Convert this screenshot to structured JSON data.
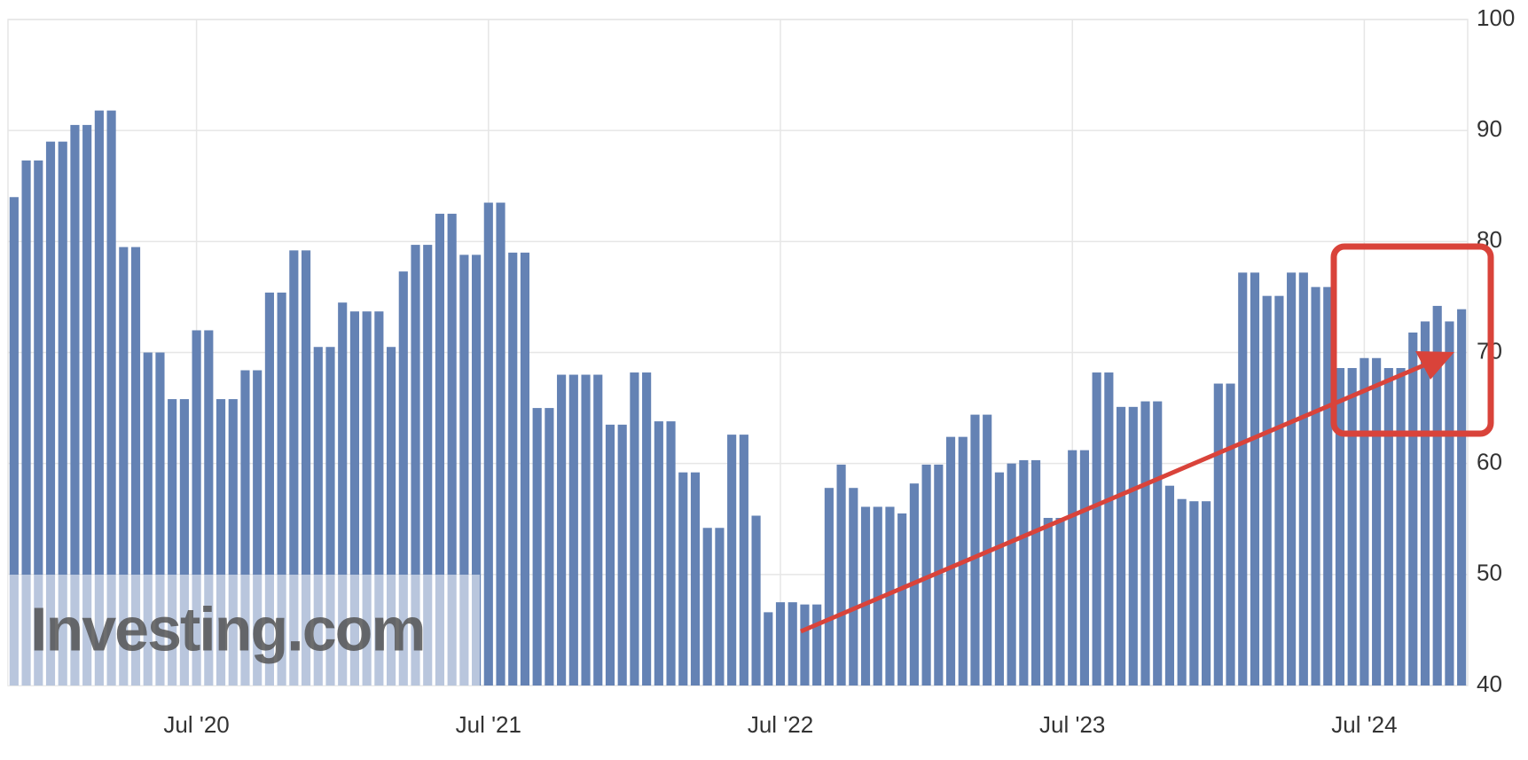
{
  "chart_data": {
    "type": "bar",
    "categories": [
      null,
      null,
      null,
      null,
      null,
      null,
      null,
      null,
      null,
      null,
      null,
      null,
      null,
      null,
      null,
      "Jul '20",
      null,
      null,
      null,
      null,
      null,
      null,
      null,
      null,
      null,
      null,
      null,
      null,
      null,
      null,
      null,
      null,
      null,
      null,
      null,
      null,
      null,
      null,
      null,
      "Jul '21",
      null,
      null,
      null,
      null,
      null,
      null,
      null,
      null,
      null,
      null,
      null,
      null,
      null,
      null,
      null,
      null,
      null,
      null,
      null,
      null,
      null,
      null,
      null,
      "Jul '22",
      null,
      null,
      null,
      null,
      null,
      null,
      null,
      null,
      null,
      null,
      null,
      null,
      null,
      null,
      null,
      null,
      null,
      null,
      null,
      null,
      null,
      null,
      null,
      "Jul '23",
      null,
      null,
      null,
      null,
      null,
      null,
      null,
      null,
      null,
      null,
      null,
      null,
      null,
      null,
      null,
      null,
      null,
      null,
      null,
      null,
      null,
      null,
      null,
      "Jul '24",
      null,
      null,
      null,
      null,
      null,
      null,
      null,
      null
    ],
    "values": [
      84,
      87.3,
      87.3,
      89,
      89,
      90.5,
      90.5,
      91.8,
      91.8,
      79.5,
      79.5,
      70,
      70,
      65.8,
      65.8,
      72,
      72,
      65.8,
      65.8,
      68.4,
      68.4,
      75.4,
      75.4,
      79.2,
      79.2,
      70.5,
      70.5,
      74.5,
      73.7,
      73.7,
      73.7,
      70.5,
      77.3,
      79.7,
      79.7,
      82.5,
      82.5,
      78.8,
      78.8,
      83.5,
      83.5,
      79,
      79,
      65,
      65,
      68,
      68,
      68,
      68,
      63.5,
      63.5,
      68.2,
      68.2,
      63.8,
      63.8,
      59.2,
      59.2,
      54.2,
      54.2,
      62.6,
      62.6,
      55.3,
      46.6,
      47.5,
      47.5,
      47.3,
      47.3,
      57.8,
      59.9,
      57.8,
      56.1,
      56.1,
      56.1,
      55.5,
      58.2,
      59.9,
      59.9,
      62.4,
      62.4,
      64.4,
      64.4,
      59.2,
      60,
      60.3,
      60.3,
      55.1,
      55.1,
      61.2,
      61.2,
      68.2,
      68.2,
      65.1,
      65.1,
      65.6,
      65.6,
      58,
      56.8,
      56.6,
      56.6,
      67.2,
      67.2,
      77.2,
      77.2,
      75.1,
      75.1,
      77.2,
      77.2,
      75.9,
      75.9,
      68.6,
      68.6,
      69.5,
      69.5,
      68.6,
      68.6,
      71.8,
      72.8,
      74.2,
      72.8,
      73.9
    ],
    "color": "#6482b4",
    "ylim": [
      40,
      100
    ],
    "yticks": [
      40,
      50,
      60,
      70,
      80,
      90,
      100
    ],
    "grid": true,
    "watermark": "Investing.com"
  }
}
